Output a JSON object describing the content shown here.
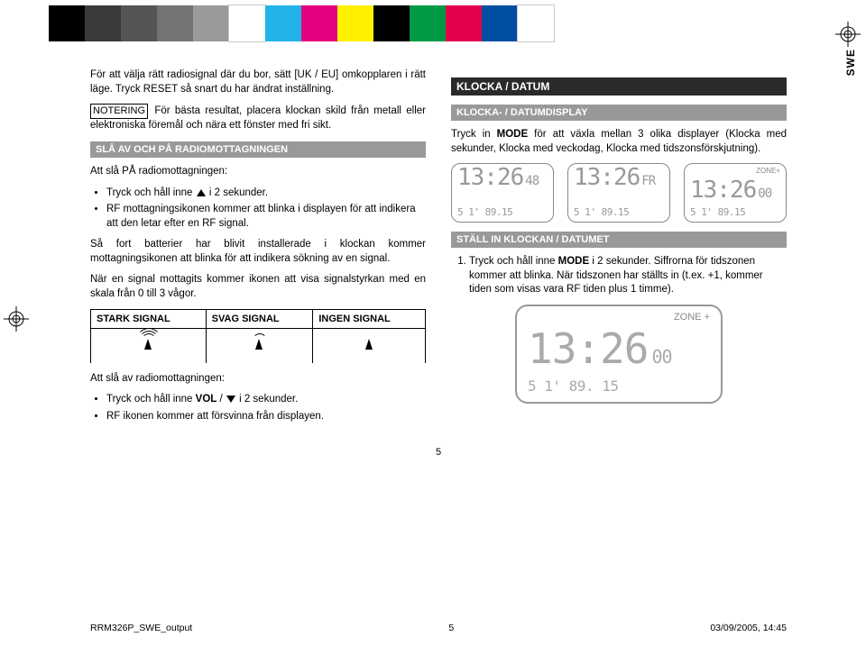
{
  "swatch_colors": [
    "#000000",
    "#3a3a3a",
    "#555555",
    "#747474",
    "#9a9a9a",
    "#ffffff",
    "#21b3e8",
    "#e4007f",
    "#fff100",
    "#000000",
    "#009944",
    "#e5004f",
    "#004ea2",
    "#ffffff"
  ],
  "swe_label": "SWE",
  "left": {
    "p1": "För att välja rätt radiosignal där du bor, sätt [UK / EU] omkopplaren i rätt läge. Tryck RESET så snart du har ändrat inställning.",
    "notice_label": "NOTERING",
    "p2": " För bästa resultat, placera klockan skild från metall eller elektroniska föremål och nära ett fönster med fri sikt.",
    "head_radio": "SLÅ AV OCH PÅ RADIOMOTTAGNINGEN",
    "on_intro": "Att slå PÅ radiomottagningen:",
    "li_on_1a": "Tryck och håll inne ",
    "li_on_1b": " i 2 sekunder.",
    "li_on_2": "RF mottagningsikonen kommer att blinka i displayen för att indikera att den letar efter en RF signal.",
    "p3": "Så fort batterier har blivit installerade i klockan kommer mottagningsikonen att blinka för att indikera sökning av en signal.",
    "p4": "När en signal mottagits kommer ikonen att visa signalstyrkan med en skala från 0 till 3 vågor.",
    "th1": "STARK SIGNAL",
    "th2": "SVAG SIGNAL",
    "th3": "INGEN SIGNAL",
    "off_intro": "Att slå av radiomottagningen:",
    "li_off_1a": "Tryck och håll inne ",
    "vol": "VOL",
    "li_off_1b": " / ",
    "li_off_1c": " i 2 sekunder.",
    "li_off_2": "RF ikonen kommer att försvinna från displayen."
  },
  "right": {
    "head_clock": "KLOCKA / DATUM",
    "head_display": "KLOCKA- / DATUMDISPLAY",
    "p1a": "Tryck in ",
    "mode": "MODE",
    "p1b": " för att växla mellan 3 olika displayer (Klocka med sekunder, Klocka med veckodag, Klocka med tidszonsförskjutning).",
    "head_set": "STÄLL IN KLOCKAN / DATUMET",
    "li1a": "Tryck och håll inne ",
    "li1b": " i 2 sekunder. Siffrorna för tidszonen kommer att blinka. När tidszonen har ställts in (t.ex. +1, kommer tiden som visas vara RF tiden plus 1 timme).",
    "lcd1_big": "13:26",
    "lcd1_sec": "48",
    "lcd1_small": "5 1'  89.15",
    "lcd2_big": "13:26",
    "lcd2_sec": "FR",
    "lcd2_small": "5 1'  89.15",
    "lcd3_big": "13:26",
    "lcd3_sec": "00",
    "lcd3_zone": "ZONE+",
    "lcd3_small": "5 1'  89.15",
    "lcd_large_big": "13:26",
    "lcd_large_sec": "00",
    "lcd_large_zone": "ZONE +",
    "lcd_large_small": "5  1'   89. 15"
  },
  "pagenum_center": "5",
  "footer": {
    "l": "RRM326P_SWE_output",
    "c": "5",
    "r": "03/09/2005, 14:45"
  }
}
